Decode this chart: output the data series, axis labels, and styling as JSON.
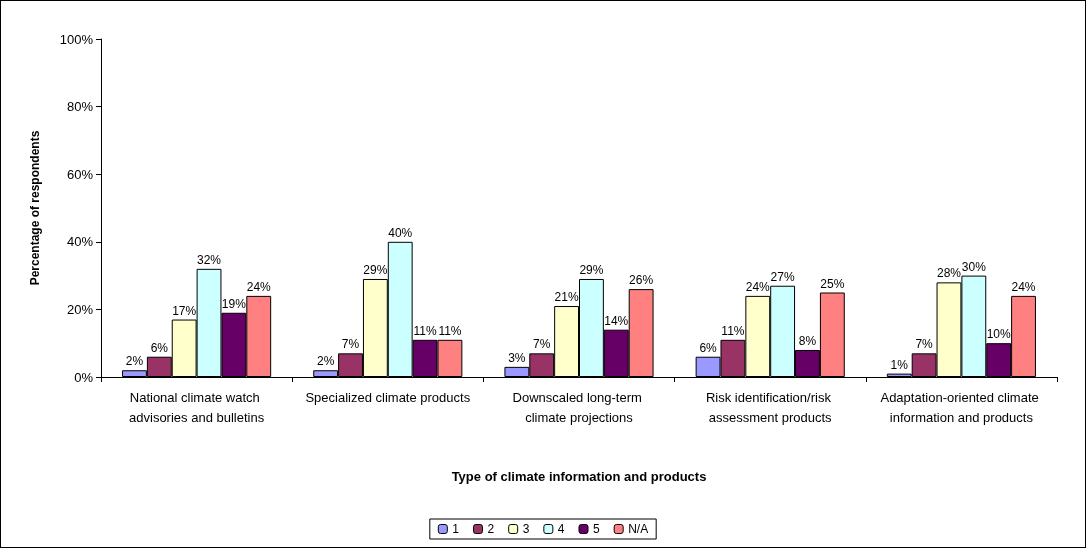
{
  "chart_data": {
    "type": "bar",
    "xlabel": "Type of climate information and products",
    "ylabel": "Percentage of respondents",
    "categories": [
      "National climate watch advisories and bulletins",
      "Specialized climate products",
      "Downscaled long-term climate projections",
      "Risk identification/risk assessment products",
      "Adaptation-oriented climate information and products"
    ],
    "series": [
      {
        "name": "1",
        "color": "#9999ff",
        "values": [
          2,
          2,
          3,
          6,
          1
        ],
        "value_labels": [
          "2%",
          "2%",
          "3%",
          "6%",
          "1%"
        ]
      },
      {
        "name": "2",
        "color": "#993366",
        "values": [
          6,
          7,
          7,
          11,
          7
        ],
        "value_labels": [
          "6%",
          "7%",
          "7%",
          "11%",
          "7%"
        ]
      },
      {
        "name": "3",
        "color": "#ffffcc",
        "values": [
          17,
          29,
          21,
          24,
          28
        ],
        "value_labels": [
          "17%",
          "29%",
          "21%",
          "24%",
          "28%"
        ]
      },
      {
        "name": "4",
        "color": "#ccffff",
        "values": [
          32,
          40,
          29,
          27,
          30
        ],
        "value_labels": [
          "32%",
          "40%",
          "29%",
          "27%",
          "30%"
        ]
      },
      {
        "name": "5",
        "color": "#660066",
        "values": [
          19,
          11,
          14,
          8,
          10
        ],
        "value_labels": [
          "19%",
          "11%",
          "14%",
          "8%",
          "10%"
        ]
      },
      {
        "name": "N/A",
        "color": "#ff8080",
        "values": [
          24,
          11,
          26,
          25,
          24
        ],
        "value_labels": [
          "24%",
          "11%",
          "26%",
          "25%",
          "24%"
        ]
      }
    ],
    "ylim": [
      0,
      100
    ],
    "yticks": [
      {
        "value": 0,
        "label": "0%"
      },
      {
        "value": 20,
        "label": "20%"
      },
      {
        "value": 40,
        "label": "40%"
      },
      {
        "value": 60,
        "label": "60%"
      },
      {
        "value": 80,
        "label": "80%"
      },
      {
        "value": 100,
        "label": "100%"
      }
    ],
    "grid": false,
    "legend": "bottom"
  }
}
